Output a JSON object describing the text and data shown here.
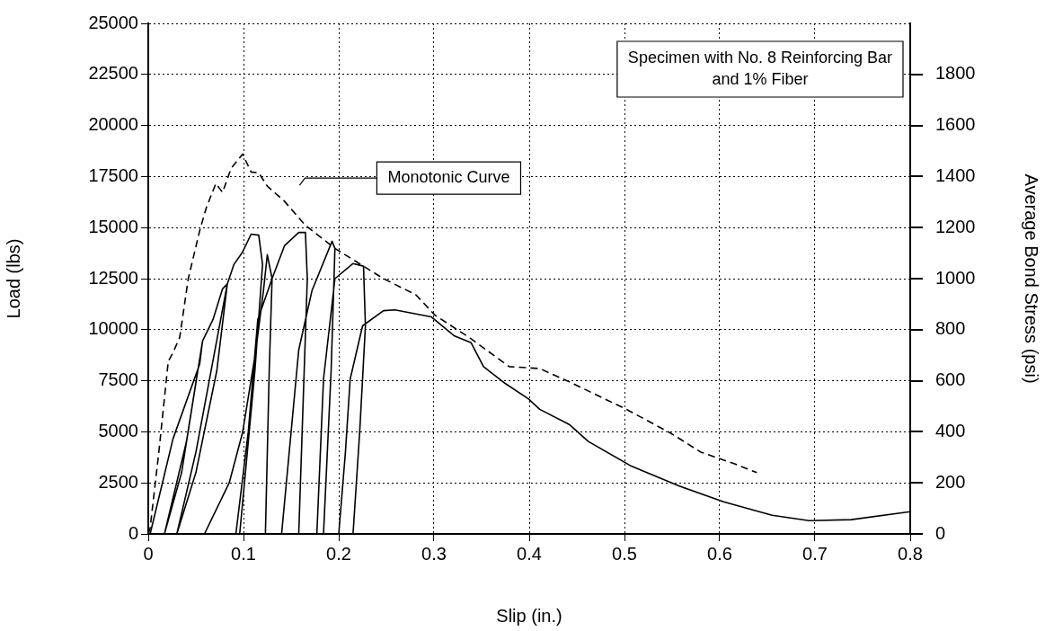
{
  "chart_data": {
    "type": "line",
    "xlabel": "Slip (in.)",
    "ylabel": "Load (lbs)",
    "y2label": "Average Bond Stress (psi)",
    "xlim": [
      0,
      0.8
    ],
    "xticks": [
      0,
      0.1,
      0.2,
      0.3,
      0.4,
      0.5,
      0.6,
      0.7,
      0.8
    ],
    "ylim": [
      0,
      25000
    ],
    "yticks": [
      0,
      2500,
      5000,
      7500,
      10000,
      12500,
      15000,
      17500,
      20000,
      22500,
      25000
    ],
    "y2lim": [
      0,
      2000
    ],
    "y2ticks": [
      0,
      200,
      400,
      600,
      800,
      1000,
      1200,
      1400,
      1600,
      1800
    ],
    "grid": true,
    "legend": false,
    "marker": "none",
    "series": [
      {
        "color": "#000000",
        "line_style": "solid",
        "x": [
          0.002,
          0.026,
          0.054,
          0.057,
          0.04,
          0.017,
          0.035,
          0.057,
          0.068,
          0.078,
          0.083,
          0.072,
          0.05,
          0.03,
          0.05,
          0.083,
          0.09,
          0.099,
          0.108,
          0.116,
          0.12,
          0.112,
          0.096,
          0.059,
          0.085,
          0.099,
          0.113,
          0.121,
          0.125,
          0.13,
          0.127,
          0.123,
          0.092,
          0.105,
          0.115,
          0.13,
          0.143,
          0.158,
          0.165,
          0.167,
          0.163,
          0.158,
          0.14,
          0.15,
          0.158,
          0.172,
          0.193,
          0.196,
          0.192,
          0.184,
          0.177,
          0.184,
          0.196,
          0.215,
          0.226,
          0.228,
          0.222,
          0.215,
          0.2,
          0.207,
          0.212,
          0.225,
          0.247,
          0.259,
          0.297,
          0.321,
          0.339,
          0.352,
          0.375,
          0.399,
          0.411,
          0.442,
          0.462,
          0.506,
          0.557,
          0.604,
          0.655,
          0.694,
          0.738,
          0.8
        ],
        "values": [
          0,
          4660,
          8320,
          9450,
          4500,
          0,
          3000,
          9450,
          10500,
          12000,
          12240,
          8000,
          3000,
          0,
          4000,
          12240,
          13200,
          13800,
          14680,
          14630,
          13200,
          8000,
          0,
          0,
          2500,
          4960,
          9000,
          11930,
          13670,
          12500,
          8000,
          0,
          0,
          5000,
          10500,
          12500,
          14110,
          14760,
          14760,
          12500,
          7000,
          0,
          0,
          5000,
          9010,
          11930,
          14330,
          13980,
          8000,
          0,
          0,
          7580,
          12500,
          13240,
          13110,
          10190,
          5000,
          0,
          0,
          4000,
          7580,
          10190,
          10930,
          10970,
          10630,
          9710,
          9360,
          8190,
          7360,
          6620,
          6100,
          5360,
          4530,
          3350,
          2350,
          1570,
          910,
          650,
          700,
          1090
        ]
      },
      {
        "color": "#000000",
        "line_style": "dashed",
        "x": [
          0,
          0.002,
          0.011,
          0.021,
          0.026,
          0.033,
          0.042,
          0.054,
          0.061,
          0.071,
          0.078,
          0.087,
          0.099,
          0.108,
          0.116,
          0.125,
          0.143,
          0.165,
          0.196,
          0.247,
          0.281,
          0.301,
          0.337,
          0.379,
          0.411,
          0.446,
          0.502,
          0.549,
          0.58,
          0.615,
          0.639
        ],
        "values": [
          0,
          300,
          3960,
          8450,
          8880,
          9620,
          12500,
          14850,
          15980,
          17160,
          16720,
          17900,
          18600,
          17720,
          17680,
          17030,
          16290,
          15110,
          13980,
          12500,
          11710,
          10710,
          9620,
          8190,
          8100,
          7360,
          6100,
          4920,
          4010,
          3440,
          3000
        ]
      }
    ],
    "annotations": [
      "Monotonic Curve",
      "Specimen with No. 8 Reinforcing Bar\nand 1% Fiber"
    ]
  }
}
